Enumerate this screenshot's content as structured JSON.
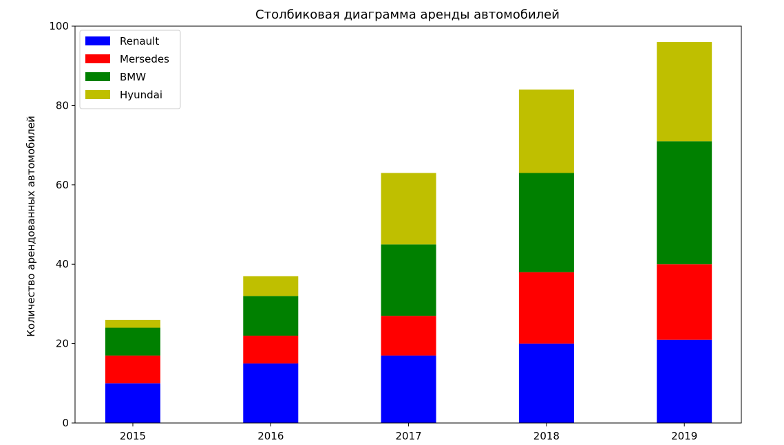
{
  "chart_data": {
    "type": "bar",
    "stacked": true,
    "title": "Столбиковая диаграмма аренды автомобилей",
    "xlabel": "",
    "ylabel": "Количество арендованных автомобилей",
    "categories": [
      "2015",
      "2016",
      "2017",
      "2018",
      "2019"
    ],
    "series": [
      {
        "name": "Renault",
        "color": "#0000ff",
        "values": [
          10,
          15,
          17,
          20,
          21
        ]
      },
      {
        "name": "Mersedes",
        "color": "#ff0000",
        "values": [
          7,
          7,
          10,
          18,
          19
        ]
      },
      {
        "name": "BMW",
        "color": "#008000",
        "values": [
          7,
          10,
          18,
          25,
          31
        ]
      },
      {
        "name": "Hyundai",
        "color": "#bfbf00",
        "values": [
          2,
          5,
          18,
          21,
          25
        ]
      }
    ],
    "ylim": [
      0,
      100
    ],
    "yticks": [
      0,
      20,
      40,
      60,
      80,
      100
    ],
    "grid": false,
    "legend_position": "top-left"
  }
}
